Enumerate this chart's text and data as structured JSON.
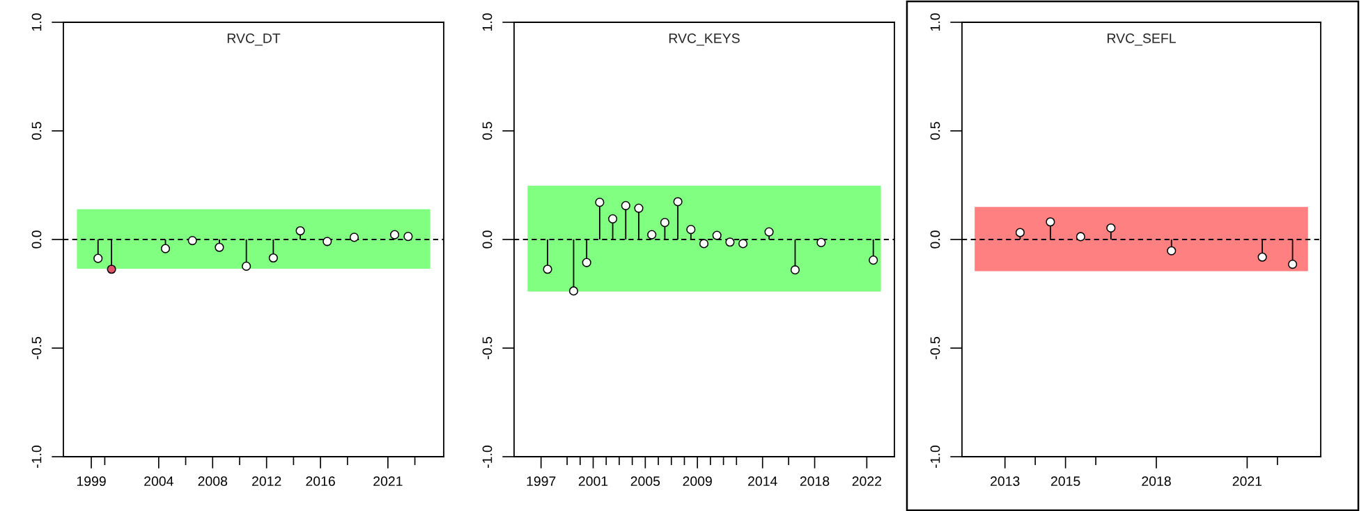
{
  "chart_data": [
    {
      "type": "lollipop",
      "title": "RVC_DT",
      "marker": "circle",
      "x": [
        1999.5,
        2000.5,
        2004.5,
        2006.5,
        2008.5,
        2010.5,
        2012.5,
        2014.5,
        2016.5,
        2018.5,
        2021.5,
        2022.5
      ],
      "values": [
        -0.087,
        -0.137,
        -0.042,
        -0.005,
        -0.036,
        -0.123,
        -0.085,
        0.04,
        -0.009,
        0.01,
        0.022,
        0.014
      ],
      "colors": [
        "#ffffff",
        "#df536b",
        "#ffffff",
        "#ffffff",
        "#ffffff",
        "#ffffff",
        "#ffffff",
        "#ffffff",
        "#ffffff",
        "#ffffff",
        "#ffffff",
        "#ffffff"
      ],
      "xlim": [
        1996.93,
        2025.14
      ],
      "yticks": [
        {
          "value": -1,
          "label": "-1.0"
        },
        {
          "value": -0.5,
          "label": "-0.5"
        },
        {
          "value": 0,
          "label": "0.0"
        },
        {
          "value": 0.5,
          "label": "0.5"
        },
        {
          "value": 1,
          "label": "1.0"
        }
      ],
      "xticks": [
        1999,
        {
          "value": 2000,
          "label": null
        },
        2004,
        {
          "value": 2006,
          "label": null
        },
        2008,
        {
          "value": 2010,
          "label": null
        },
        2012,
        {
          "value": 2014,
          "label": null
        },
        2016,
        {
          "value": 2018,
          "label": null
        },
        2021,
        {
          "value": 2023,
          "label": null
        }
      ],
      "ylim": [
        -1,
        1
      ],
      "bands": [
        {
          "axis": "y",
          "from": -0.132,
          "to": 0.137,
          "label": null,
          "color": "#80ff80"
        }
      ],
      "ref_lines": [
        {
          "axis": "y",
          "value": 0,
          "label": null,
          "line_style": "dashed",
          "color": "#000000"
        }
      ]
    },
    {
      "type": "lollipop",
      "title": "RVC_KEYS",
      "marker": "circle",
      "x": [
        1997.5,
        1999.5,
        2000.5,
        2001.5,
        2002.5,
        2003.5,
        2004.5,
        2005.5,
        2006.5,
        2007.5,
        2008.5,
        2009.5,
        2010.5,
        2011.5,
        2012.5,
        2014.5,
        2016.5,
        2018.5,
        2022.5
      ],
      "values": [
        -0.137,
        -0.237,
        -0.106,
        0.171,
        0.095,
        0.156,
        0.144,
        0.022,
        0.078,
        0.174,
        0.046,
        -0.019,
        0.019,
        -0.012,
        -0.019,
        0.035,
        -0.14,
        -0.014,
        -0.095
      ],
      "colors": [
        "#ffffff",
        "#ffffff",
        "#ffffff",
        "#ffffff",
        "#ffffff",
        "#ffffff",
        "#ffffff",
        "#ffffff",
        "#ffffff",
        "#ffffff",
        "#ffffff",
        "#ffffff",
        "#ffffff",
        "#ffffff",
        "#ffffff",
        "#ffffff",
        "#ffffff",
        "#ffffff",
        "#ffffff"
      ],
      "xlim": [
        1994.93,
        2024.12
      ],
      "yticks": [
        {
          "value": -1,
          "label": "-1.0"
        },
        {
          "value": -0.5,
          "label": "-0.5"
        },
        {
          "value": 0,
          "label": "0.0"
        },
        {
          "value": 0.5,
          "label": "0.5"
        },
        {
          "value": 1,
          "label": "1.0"
        }
      ],
      "xticks": [
        1997,
        {
          "value": 1999,
          "label": null
        },
        {
          "value": 2000,
          "label": null
        },
        2001,
        {
          "value": 2002,
          "label": null
        },
        {
          "value": 2003,
          "label": null
        },
        {
          "value": 2004,
          "label": null
        },
        2005,
        {
          "value": 2006,
          "label": null
        },
        {
          "value": 2007,
          "label": null
        },
        {
          "value": 2008,
          "label": null
        },
        2009,
        {
          "value": 2010,
          "label": null
        },
        {
          "value": 2011,
          "label": null
        },
        {
          "value": 2012,
          "label": null
        },
        2014,
        {
          "value": 2016,
          "label": null
        },
        2018,
        2022
      ],
      "ylim": [
        -1,
        1
      ],
      "bands": [
        {
          "axis": "y",
          "from": -0.237,
          "to": 0.245,
          "label": null,
          "color": "#80ff80"
        }
      ],
      "ref_lines": [
        {
          "axis": "y",
          "value": 0,
          "label": null,
          "line_style": "dashed",
          "color": "#000000"
        }
      ]
    },
    {
      "type": "lollipop",
      "title": "RVC_SEFL",
      "marker": "circle",
      "x": [
        2013.5,
        2014.5,
        2015.5,
        2016.5,
        2018.5,
        2021.5,
        2022.5
      ],
      "values": [
        0.032,
        0.081,
        0.013,
        0.053,
        -0.052,
        -0.081,
        -0.114
      ],
      "colors": [
        "#ffffff",
        "#ffffff",
        "#ffffff",
        "#ffffff",
        "#ffffff",
        "#ffffff",
        "#ffffff"
      ],
      "xlim": [
        2011.58,
        2023.43
      ],
      "yticks": [
        {
          "value": -1,
          "label": "-1.0"
        },
        {
          "value": -0.5,
          "label": "-0.5"
        },
        {
          "value": 0,
          "label": "0.0"
        },
        {
          "value": 0.5,
          "label": "0.5"
        },
        {
          "value": 1,
          "label": "1.0"
        }
      ],
      "xticks": [
        2013,
        {
          "value": 2014,
          "label": null
        },
        2015,
        {
          "value": 2016,
          "label": null
        },
        2018,
        2021,
        {
          "value": 2022,
          "label": null
        }
      ],
      "ylim": [
        -1,
        1
      ],
      "bands": [
        {
          "axis": "y",
          "from": -0.143,
          "to": 0.147,
          "label": null,
          "color": "#ff8080"
        }
      ],
      "ref_lines": [
        {
          "axis": "y",
          "value": 0,
          "label": null,
          "line_style": "dashed",
          "color": "#000000"
        }
      ]
    }
  ]
}
